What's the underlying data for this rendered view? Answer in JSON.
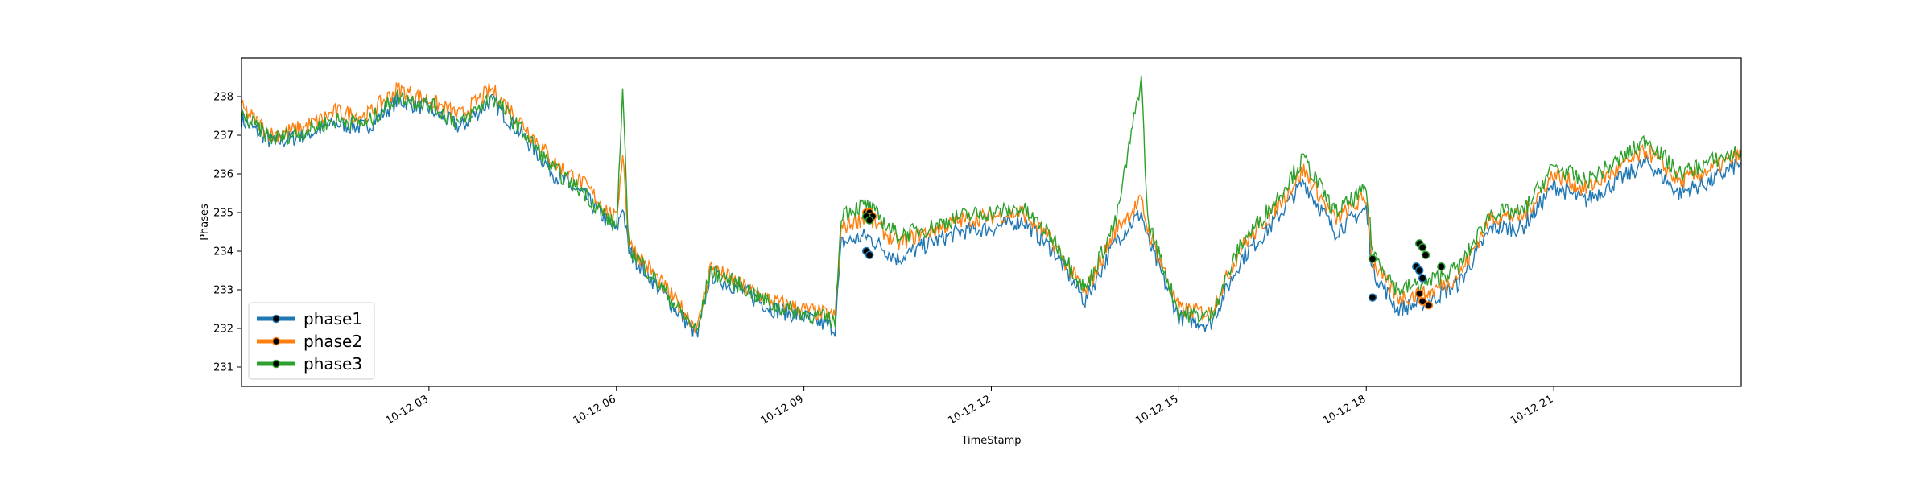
{
  "chart_data": {
    "type": "line",
    "xlabel": "TimeStamp",
    "ylabel": "Phases",
    "xlim": [
      0,
      24
    ],
    "ylim": [
      230.5,
      239.0
    ],
    "grid": false,
    "legend_position": "lower-left",
    "x_ticks": [
      {
        "value": 3,
        "label": "10-12 03"
      },
      {
        "value": 6,
        "label": "10-12 06"
      },
      {
        "value": 9,
        "label": "10-12 09"
      },
      {
        "value": 12,
        "label": "10-12 12"
      },
      {
        "value": 15,
        "label": "10-12 15"
      },
      {
        "value": 18,
        "label": "10-12 18"
      },
      {
        "value": 21,
        "label": "10-12 21"
      }
    ],
    "y_ticks": [
      231,
      232,
      233,
      234,
      235,
      236,
      237,
      238
    ],
    "series": [
      {
        "name": "phase1",
        "color": "#1f77b4",
        "x": [
          0,
          0.5,
          1,
          1.5,
          2,
          2.5,
          3,
          3.5,
          4,
          4.5,
          5,
          5.5,
          6,
          6.1,
          6.2,
          6.5,
          7,
          7.3,
          7.5,
          8,
          8.5,
          9,
          9.5,
          9.6,
          10,
          10.5,
          11,
          11.5,
          12,
          12.5,
          13,
          13.5,
          14,
          14.4,
          14.5,
          15,
          15.5,
          16,
          16.5,
          17,
          17.5,
          18,
          18.1,
          18.5,
          19,
          19.5,
          20,
          20.5,
          21,
          21.5,
          22,
          22.5,
          23,
          23.5,
          24
        ],
        "y": [
          237.4,
          236.8,
          237.0,
          237.3,
          237.2,
          237.9,
          237.7,
          237.2,
          237.9,
          237.0,
          236.0,
          235.4,
          234.5,
          235.2,
          234.0,
          233.4,
          232.4,
          231.8,
          233.4,
          233.0,
          232.5,
          232.3,
          232.0,
          234.2,
          234.4,
          233.8,
          234.2,
          234.5,
          234.6,
          234.8,
          234.0,
          232.7,
          234.3,
          235.0,
          234.3,
          232.3,
          232.1,
          233.8,
          234.7,
          235.8,
          234.5,
          235.1,
          233.5,
          232.5,
          232.7,
          233.2,
          234.6,
          234.6,
          235.7,
          235.3,
          235.8,
          236.3,
          235.5,
          235.8,
          236.3
        ],
        "markers": {
          "x": [
            10.0,
            10.05,
            18.1,
            18.8,
            18.85,
            18.9
          ],
          "y": [
            234.0,
            233.9,
            232.8,
            233.6,
            233.5,
            233.3
          ]
        }
      },
      {
        "name": "phase2",
        "color": "#ff7f0e",
        "x": [
          0,
          0.5,
          1,
          1.5,
          2,
          2.5,
          3,
          3.5,
          4,
          4.5,
          5,
          5.5,
          6,
          6.1,
          6.2,
          6.5,
          7,
          7.3,
          7.5,
          8,
          8.5,
          9,
          9.5,
          9.6,
          10,
          10.5,
          11,
          11.5,
          12,
          12.5,
          13,
          13.5,
          14,
          14.4,
          14.5,
          15,
          15.5,
          16,
          16.5,
          17,
          17.5,
          18,
          18.1,
          18.5,
          19,
          19.5,
          20,
          20.5,
          21,
          21.5,
          22,
          22.5,
          23,
          23.5,
          24
        ],
        "y": [
          237.7,
          237.0,
          237.2,
          237.6,
          237.5,
          238.2,
          237.9,
          237.5,
          238.2,
          237.3,
          236.3,
          235.7,
          234.8,
          236.6,
          234.2,
          233.6,
          232.6,
          232.0,
          233.6,
          233.1,
          232.7,
          232.5,
          232.3,
          234.6,
          234.9,
          234.2,
          234.5,
          234.8,
          234.9,
          235.0,
          234.2,
          232.9,
          234.6,
          235.3,
          234.6,
          232.5,
          232.4,
          234.1,
          235.0,
          236.1,
          234.8,
          235.4,
          233.7,
          232.8,
          232.9,
          233.4,
          234.9,
          234.9,
          236.0,
          235.6,
          236.1,
          236.6,
          235.8,
          236.1,
          236.5
        ],
        "markers": {
          "x": [
            10.0,
            10.05,
            10.1,
            18.85,
            18.9,
            19.0
          ],
          "y": [
            235.0,
            235.0,
            234.9,
            232.9,
            232.7,
            232.6
          ]
        }
      },
      {
        "name": "phase3",
        "color": "#2ca02c",
        "x": [
          0,
          0.5,
          1,
          1.5,
          2,
          2.5,
          3,
          3.5,
          4,
          4.5,
          5,
          5.5,
          6,
          6.1,
          6.2,
          6.5,
          7,
          7.3,
          7.5,
          8,
          8.5,
          9,
          9.5,
          9.6,
          10,
          10.5,
          11,
          11.5,
          12,
          12.5,
          13,
          13.5,
          14,
          14.4,
          14.5,
          15,
          15.5,
          16,
          16.5,
          17,
          17.5,
          18,
          18.1,
          18.5,
          19,
          19.5,
          20,
          20.5,
          21,
          21.5,
          22,
          22.5,
          23,
          23.5,
          24
        ],
        "y": [
          237.5,
          236.9,
          237.1,
          237.4,
          237.3,
          238.0,
          237.8,
          237.3,
          238.0,
          237.1,
          236.1,
          235.5,
          234.6,
          238.0,
          234.1,
          233.5,
          232.5,
          231.9,
          233.5,
          233.1,
          232.6,
          232.4,
          232.2,
          235.0,
          235.2,
          234.4,
          234.6,
          234.9,
          235.0,
          235.1,
          234.3,
          233.0,
          234.8,
          238.5,
          234.8,
          232.4,
          232.3,
          234.2,
          235.2,
          236.4,
          235.0,
          235.6,
          234.0,
          233.0,
          233.2,
          233.6,
          235.0,
          235.0,
          236.2,
          235.8,
          236.3,
          236.9,
          236.0,
          236.3,
          236.6
        ],
        "markers": {
          "x": [
            10.0,
            10.05,
            18.1,
            18.85,
            18.9,
            18.95,
            19.2
          ],
          "y": [
            234.9,
            234.8,
            233.8,
            234.2,
            234.1,
            233.9,
            233.6
          ]
        }
      }
    ]
  }
}
